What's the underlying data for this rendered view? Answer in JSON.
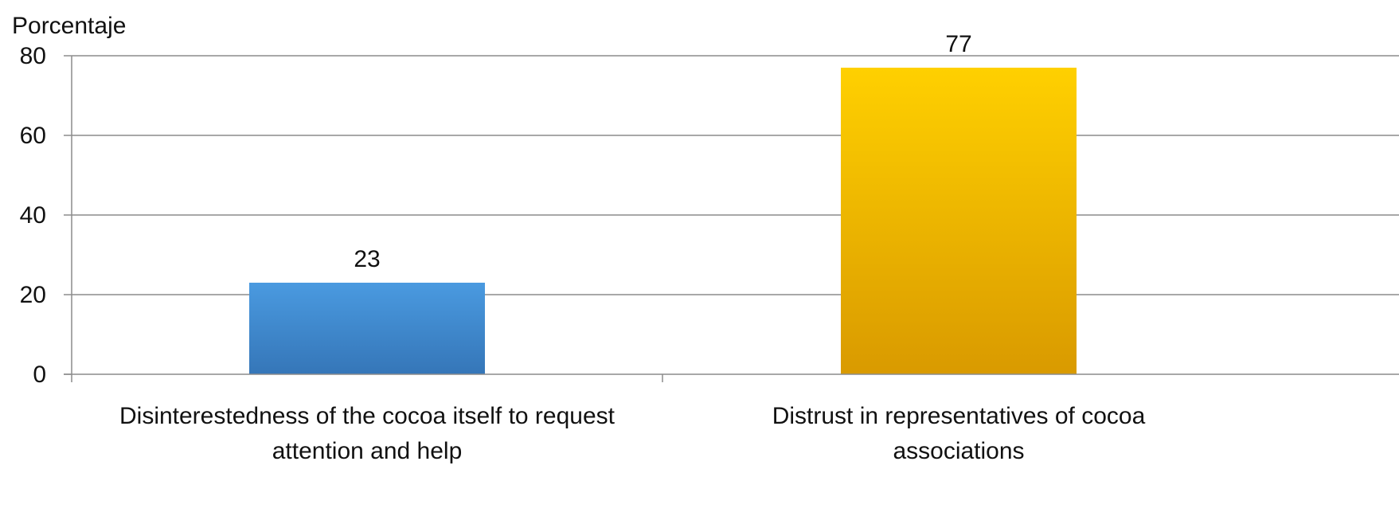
{
  "chart_data": {
    "type": "bar",
    "ylabel": "Porcentaje",
    "ylim": [
      0,
      80
    ],
    "yticks": [
      0,
      20,
      40,
      60,
      80
    ],
    "ytick_labels": [
      "0",
      "20",
      "40",
      "60",
      "80"
    ],
    "grid": true,
    "categories": [
      "Disinterestedness of the cocoa itself to request attention and help",
      "Distrust in representatives of cocoa associations"
    ],
    "category_label_lines": [
      [
        "Disinterestedness of the cocoa itself to request",
        "attention and help"
      ],
      [
        "Distrust in representatives of cocoa",
        "associations"
      ]
    ],
    "values": [
      23,
      77
    ],
    "data_labels": [
      "23",
      "77"
    ],
    "colors": {
      "bar_1_top": "#4A9AE0",
      "bar_1_bottom": "#3576B8",
      "bar_2_top": "#FFD000",
      "bar_2_bottom": "#D99A00",
      "gridline": "#8C8C8C",
      "axis": "#8C8C8C",
      "text": "#111111"
    }
  }
}
